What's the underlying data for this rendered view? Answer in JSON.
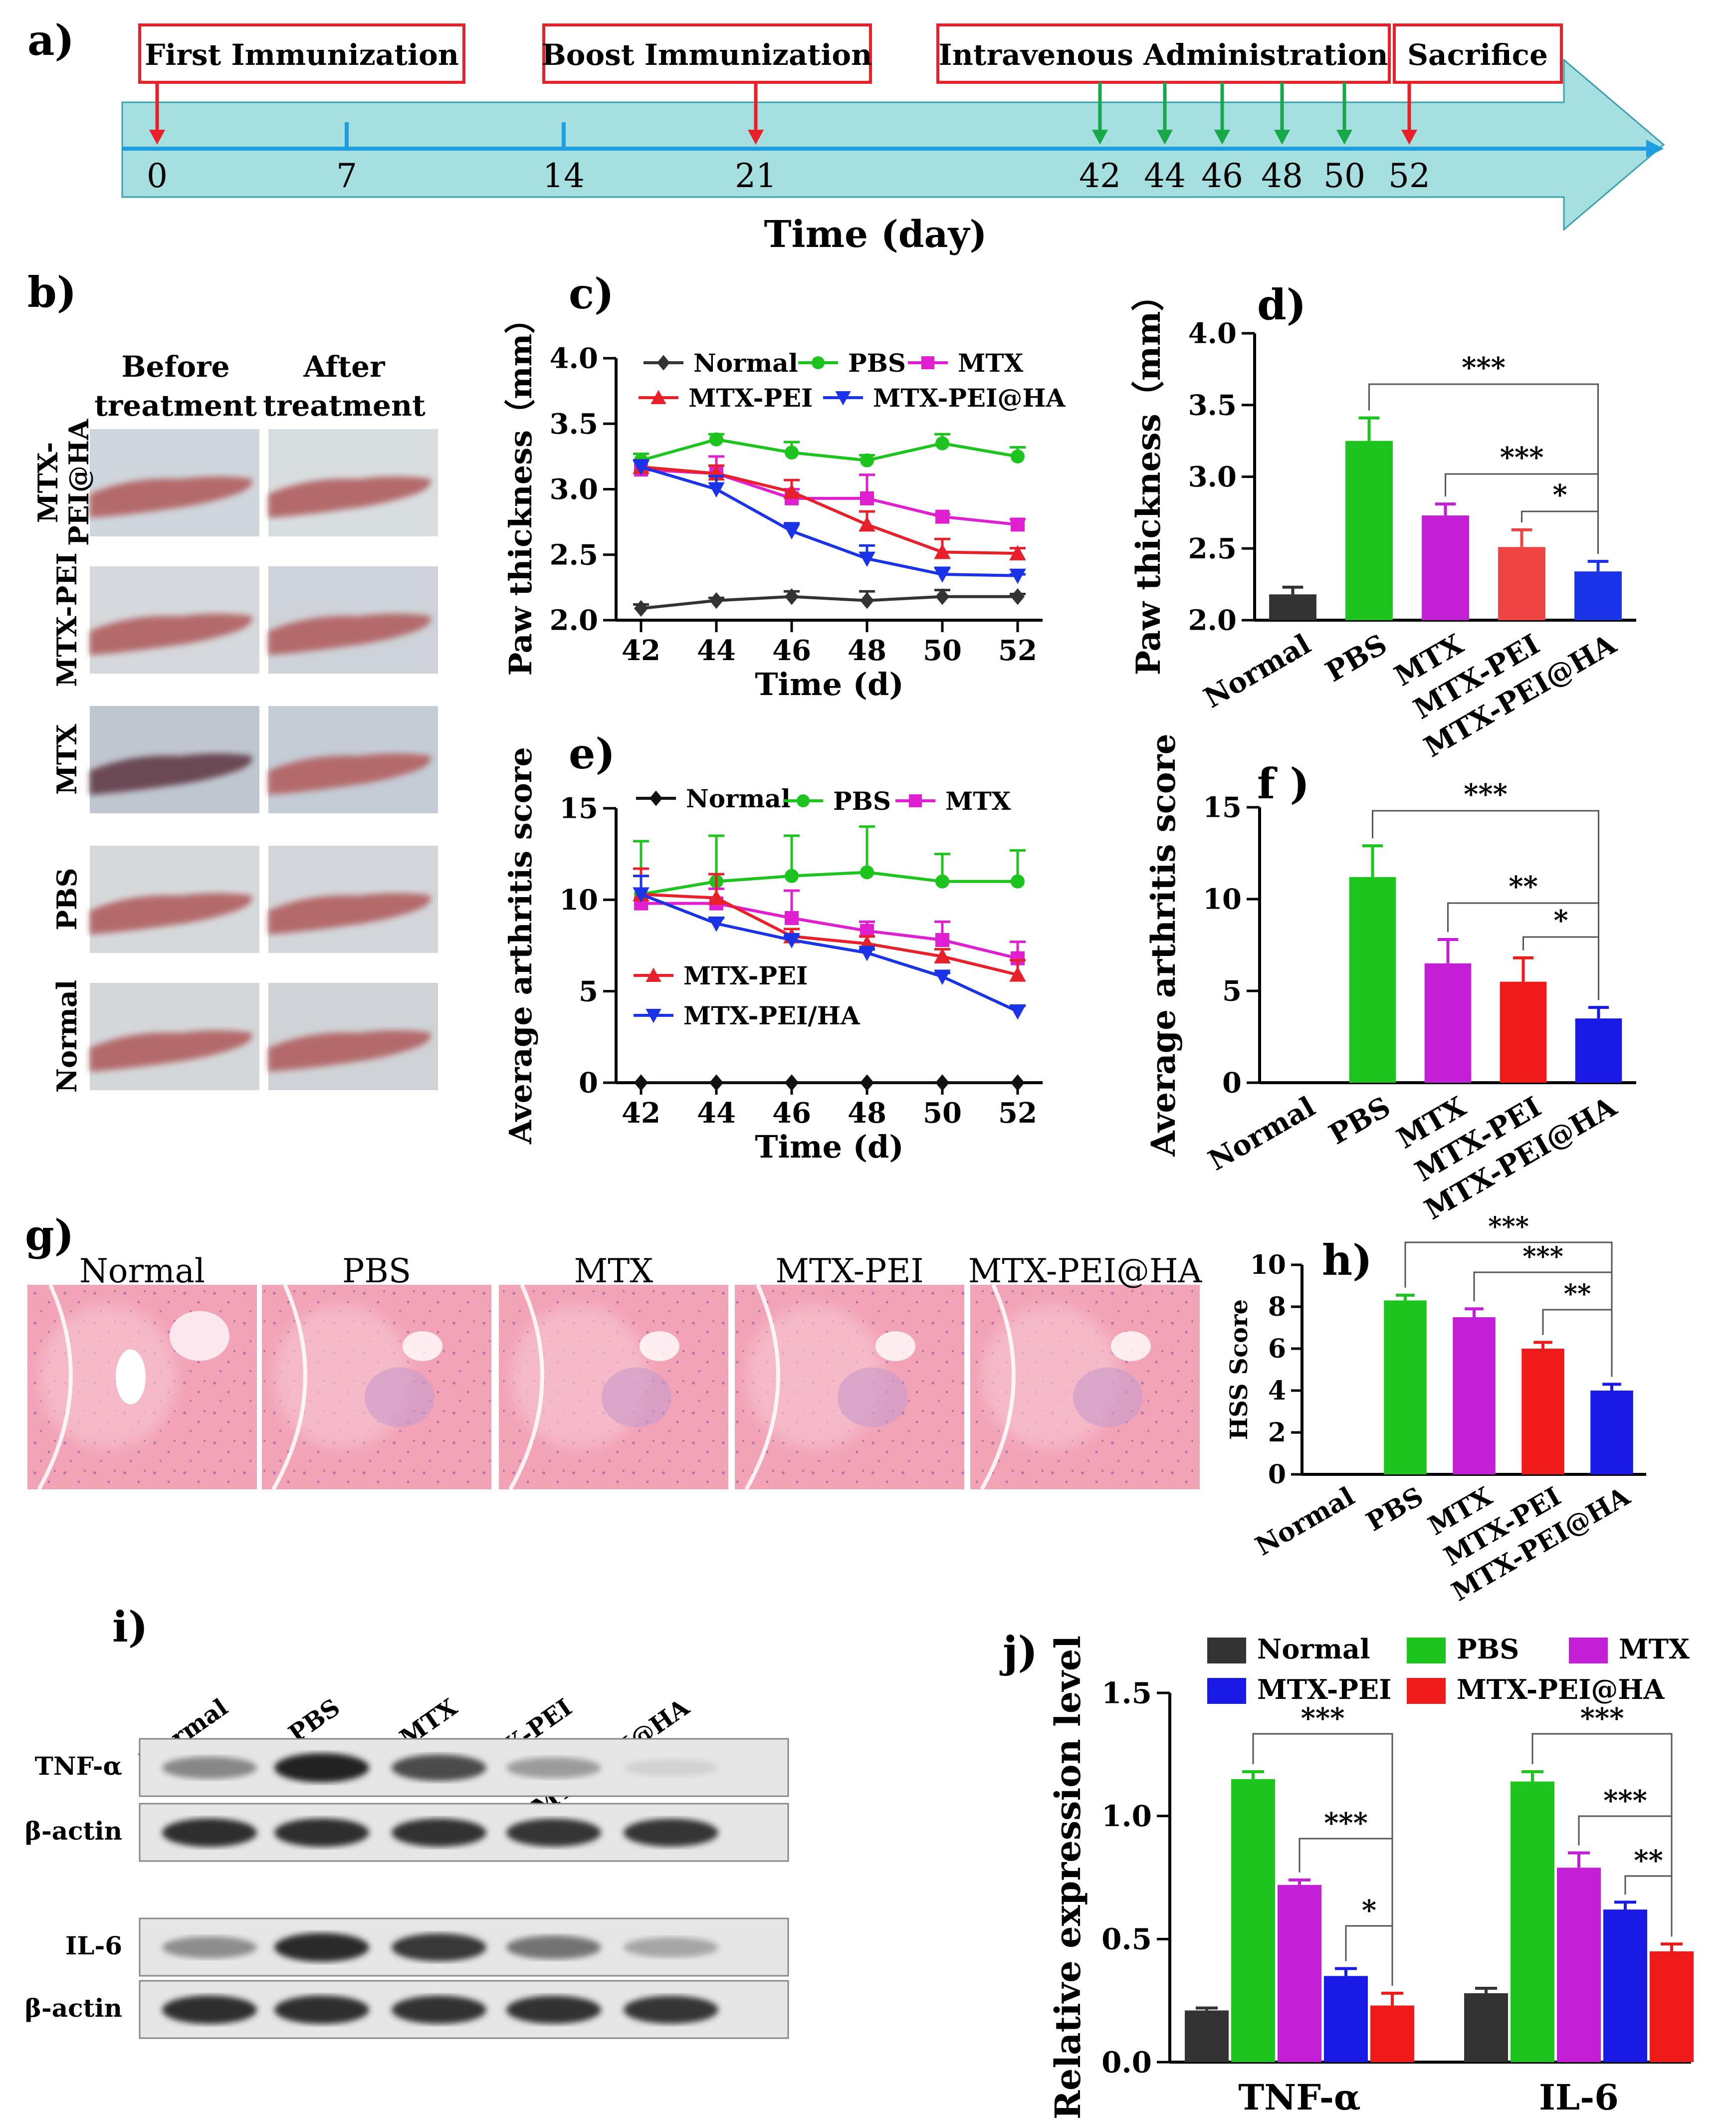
{
  "panels": {
    "a": "a)",
    "b": "b)",
    "c": "c)",
    "d": "d)",
    "e": "e)",
    "f": "f )",
    "g": "g)",
    "h": "h)",
    "i": "i)",
    "j": "j)"
  },
  "timeline": {
    "events": [
      {
        "label": "First Immunization",
        "day": 0
      },
      {
        "label": "Boost Immunization",
        "day": 21
      },
      {
        "label": "Intravenous  Administration",
        "days": [
          42,
          44,
          46,
          48,
          50
        ]
      },
      {
        "label": "Sacrifice",
        "day": 52
      }
    ],
    "ticks": [
      0,
      7,
      14,
      21,
      42,
      44,
      46,
      48,
      50,
      52
    ],
    "minor_ticks": [
      7,
      14
    ],
    "xlabel": "Time (day)",
    "colors": {
      "arrow_fill": "#a6dfe0",
      "axis": "#1e9ee0",
      "immunization": "#e8202a",
      "administration": "#18a84a",
      "box": "#e8202a"
    }
  },
  "photos": {
    "col_headers": [
      "Before\ntreatment",
      "After\ntreatment"
    ],
    "rows": [
      "MTX-\nPEI@HA",
      "MTX-PEI",
      "MTX",
      "PBS",
      "Normal"
    ]
  },
  "chart_data": [
    {
      "id": "c",
      "type": "line",
      "x": [
        42,
        44,
        46,
        48,
        50,
        52
      ],
      "xlabel": "Time (d)",
      "ylabel": "Paw thickness（mm）",
      "ylim": [
        2.0,
        4.0
      ],
      "yticks": [
        "2.0",
        "2.5",
        "3.0",
        "3.5",
        "4.0"
      ],
      "series": [
        {
          "name": "Normal",
          "color": "#333333",
          "marker": "diamond",
          "values": [
            2.09,
            2.15,
            2.18,
            2.15,
            2.18,
            2.18
          ],
          "err": [
            0.03,
            0.02,
            0.04,
            0.07,
            0.05,
            0.02
          ]
        },
        {
          "name": "PBS",
          "color": "#1ec41e",
          "marker": "circle",
          "values": [
            3.22,
            3.38,
            3.28,
            3.22,
            3.35,
            3.25
          ],
          "err": [
            0.05,
            0.04,
            0.08,
            0.04,
            0.07,
            0.07
          ]
        },
        {
          "name": "MTX",
          "color": "#e020d0",
          "marker": "square",
          "values": [
            3.15,
            3.12,
            2.93,
            2.93,
            2.79,
            2.73
          ],
          "err": [
            0.07,
            0.13,
            0.07,
            0.18,
            0.02,
            0.04
          ]
        },
        {
          "name": "MTX-PEI",
          "color": "#e8202a",
          "marker": "triangle-up",
          "values": [
            3.17,
            3.12,
            2.98,
            2.73,
            2.52,
            2.51
          ],
          "err": [
            0.05,
            0.06,
            0.09,
            0.1,
            0.1,
            0.04
          ]
        },
        {
          "name": "MTX-PEI@HA",
          "color": "#1a33e6",
          "marker": "triangle-down",
          "values": [
            3.17,
            3.0,
            2.68,
            2.47,
            2.35,
            2.34
          ],
          "err": [
            0.05,
            0.1,
            0.06,
            0.1,
            0.05,
            0.01
          ]
        }
      ]
    },
    {
      "id": "d",
      "type": "bar",
      "categories": [
        "Normal",
        "PBS",
        "MTX",
        "MTX-PEI",
        "MTX-PEI@HA"
      ],
      "values": [
        2.18,
        3.25,
        2.73,
        2.51,
        2.34
      ],
      "err": [
        0.05,
        0.16,
        0.08,
        0.12,
        0.07
      ],
      "colors": [
        "#333333",
        "#1ec41e",
        "#c21fd6",
        "#f04444",
        "#1a33e6"
      ],
      "ylabel": "Paw thickness（mm）",
      "ylim": [
        2.0,
        4.0
      ],
      "yticks": [
        "2.0",
        "2.5",
        "3.0",
        "3.5",
        "4.0"
      ],
      "significance": [
        {
          "from": 1,
          "to": 4,
          "label": "***"
        },
        {
          "from": 2,
          "to": 4,
          "label": "***"
        },
        {
          "from": 3,
          "to": 4,
          "label": "*"
        }
      ]
    },
    {
      "id": "e",
      "type": "line",
      "x": [
        42,
        44,
        46,
        48,
        50,
        52
      ],
      "xlabel": "Time (d)",
      "ylabel": "Average arthritis score",
      "ylim": [
        0,
        15
      ],
      "yticks": [
        "0",
        "5",
        "10",
        "15"
      ],
      "series": [
        {
          "name": "Normal",
          "color": "#111111",
          "marker": "diamond",
          "values": [
            0,
            0,
            0,
            0,
            0,
            0
          ],
          "err": [
            0,
            0,
            0,
            0,
            0,
            0
          ]
        },
        {
          "name": "PBS",
          "color": "#1ec41e",
          "marker": "circle",
          "values": [
            10.3,
            11.0,
            11.3,
            11.5,
            11.0,
            11.0
          ],
          "err": [
            2.9,
            2.5,
            2.2,
            2.5,
            1.5,
            1.7
          ]
        },
        {
          "name": "MTX",
          "color": "#e020d0",
          "marker": "square",
          "values": [
            9.8,
            9.8,
            9.0,
            8.3,
            7.8,
            6.8
          ],
          "err": [
            1.5,
            0.8,
            1.5,
            0.5,
            1.0,
            0.9
          ]
        },
        {
          "name": "MTX-PEI",
          "color": "#e8202a",
          "marker": "triangle-up",
          "values": [
            10.3,
            10.1,
            8.0,
            7.6,
            6.9,
            5.9
          ],
          "err": [
            1.4,
            1.3,
            0.4,
            0.4,
            0.4,
            0.8
          ]
        },
        {
          "name": "MTX-PEI/HA",
          "color": "#1a33e6",
          "marker": "triangle-down",
          "values": [
            10.3,
            8.7,
            7.8,
            7.1,
            5.8,
            3.9
          ],
          "err": [
            1.0,
            0.3,
            0.2,
            0.2,
            0.2,
            0.3
          ]
        }
      ]
    },
    {
      "id": "f",
      "type": "bar",
      "categories": [
        "Normal",
        "PBS",
        "MTX",
        "MTX-PEI",
        "MTX-PEI@HA"
      ],
      "values": [
        0,
        11.2,
        6.5,
        5.5,
        3.5
      ],
      "err": [
        0,
        1.7,
        1.3,
        1.3,
        0.6
      ],
      "colors": [
        "#333333",
        "#1ec41e",
        "#c21fd6",
        "#f01a1a",
        "#1a1ae6"
      ],
      "ylabel": "Average arthritis score",
      "ylim": [
        0,
        15
      ],
      "yticks": [
        "0",
        "5",
        "10",
        "15"
      ],
      "significance": [
        {
          "from": 1,
          "to": 4,
          "label": "***"
        },
        {
          "from": 2,
          "to": 4,
          "label": "**"
        },
        {
          "from": 3,
          "to": 4,
          "label": "*"
        }
      ]
    },
    {
      "id": "h",
      "type": "bar",
      "categories": [
        "Normal",
        "PBS",
        "MTX",
        "MTX-PEI",
        "MTX-PEI@HA"
      ],
      "values": [
        0,
        8.3,
        7.5,
        6.0,
        4.0
      ],
      "err": [
        0,
        0.25,
        0.4,
        0.3,
        0.3
      ],
      "colors": [
        "#333333",
        "#1ec41e",
        "#c21fd6",
        "#f01a1a",
        "#1a1ae6"
      ],
      "ylabel": "HSS Score",
      "ylim": [
        0,
        10
      ],
      "yticks": [
        "0",
        "2",
        "4",
        "6",
        "8",
        "10"
      ],
      "significance": [
        {
          "from": 1,
          "to": 4,
          "label": "***"
        },
        {
          "from": 2,
          "to": 4,
          "label": "***"
        },
        {
          "from": 3,
          "to": 4,
          "label": "**"
        }
      ]
    },
    {
      "id": "j",
      "type": "bar",
      "categories": [
        "TNF-α",
        "IL-6"
      ],
      "ylabel": "Relative  expression level",
      "ylim": [
        0,
        1.5
      ],
      "yticks": [
        "0.0",
        "0.5",
        "1.0",
        "1.5"
      ],
      "legend": [
        {
          "name": "Normal",
          "color": "#333333"
        },
        {
          "name": "PBS",
          "color": "#1ec41e"
        },
        {
          "name": "MTX",
          "color": "#c21fd6"
        },
        {
          "name": "MTX-PEI",
          "color": "#1a1ae6"
        },
        {
          "name": "MTX-PEI@HA",
          "color": "#f01a1a"
        }
      ],
      "series": [
        {
          "name": "Normal",
          "values": [
            0.21,
            0.28
          ],
          "err": [
            0.01,
            0.02
          ]
        },
        {
          "name": "PBS",
          "values": [
            1.15,
            1.14
          ],
          "err": [
            0.03,
            0.04
          ]
        },
        {
          "name": "MTX",
          "values": [
            0.72,
            0.79
          ],
          "err": [
            0.02,
            0.06
          ]
        },
        {
          "name": "MTX-PEI",
          "values": [
            0.35,
            0.62
          ],
          "err": [
            0.03,
            0.03
          ]
        },
        {
          "name": "MTX-PEI@HA",
          "values": [
            0.23,
            0.45
          ],
          "err": [
            0.05,
            0.03
          ]
        }
      ],
      "significance": [
        {
          "group": 0,
          "from": 1,
          "to": 4,
          "label": "***"
        },
        {
          "group": 0,
          "from": 2,
          "to": 4,
          "label": "***"
        },
        {
          "group": 0,
          "from": 3,
          "to": 4,
          "label": "*"
        },
        {
          "group": 1,
          "from": 1,
          "to": 4,
          "label": "***"
        },
        {
          "group": 1,
          "from": 2,
          "to": 4,
          "label": "***"
        },
        {
          "group": 1,
          "from": 3,
          "to": 4,
          "label": "**"
        }
      ]
    }
  ],
  "histology": {
    "labels": [
      "Normal",
      "PBS",
      "MTX",
      "MTX-PEI",
      "MTX-PEI@HA"
    ]
  },
  "western": {
    "lanes": [
      "Normal",
      "PBS",
      "MTX",
      "MTX-PEI",
      "MTX-PEI@HA"
    ],
    "blots": [
      {
        "label": "TNF-α",
        "intensity": [
          0.45,
          0.95,
          0.75,
          0.35,
          0.08
        ]
      },
      {
        "label": "β-actin",
        "intensity": [
          0.9,
          0.9,
          0.88,
          0.86,
          0.86
        ]
      },
      {
        "label": "IL-6",
        "intensity": [
          0.42,
          0.92,
          0.85,
          0.55,
          0.3
        ]
      },
      {
        "label": "β-actin",
        "intensity": [
          0.9,
          0.9,
          0.88,
          0.87,
          0.86
        ]
      }
    ]
  }
}
